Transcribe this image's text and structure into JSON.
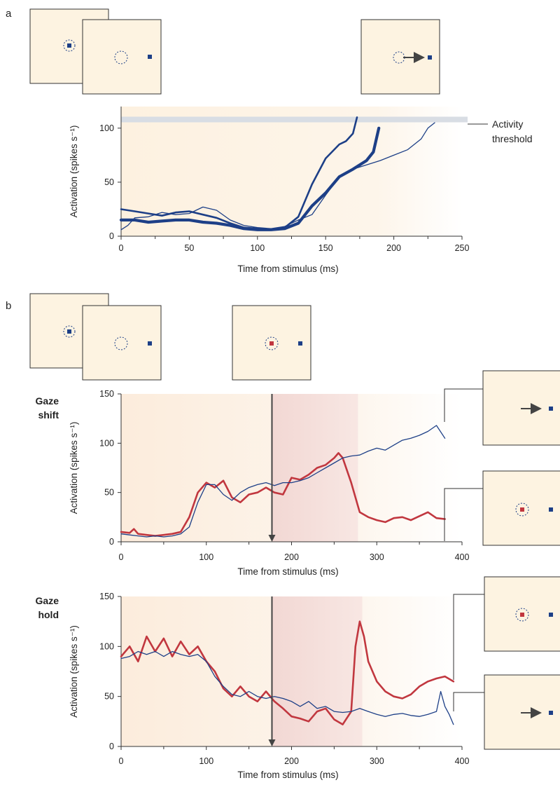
{
  "figure": {
    "panel_a": "a",
    "panel_b": "b",
    "threshold_line1": "Activity",
    "threshold_line2": "threshold",
    "gaze_shift_line1": "Gaze",
    "gaze_shift_line2": "shift",
    "gaze_hold_line1": "Gaze",
    "gaze_hold_line2": "hold"
  },
  "colors": {
    "blue": "#1d3f87",
    "red": "#c1373f",
    "panel_bg": "#fdf3e1",
    "threshold": "#d8dde4",
    "shade": "#f1d9d6"
  },
  "chart_data": [
    {
      "type": "line",
      "panel": "a",
      "xlabel": "Time from stimulus (ms)",
      "ylabel": "Activation (spikes s⁻¹)",
      "xlim": [
        0,
        250
      ],
      "ylim": [
        0,
        120
      ],
      "xticks": [
        "0",
        "50",
        "100",
        "150",
        "200",
        "250"
      ],
      "yticks": [
        "0",
        "50",
        "100"
      ],
      "threshold": 108,
      "threshold_label": "Activity threshold",
      "series": [
        {
          "style": "medium",
          "x": [
            0,
            10,
            20,
            30,
            40,
            50,
            60,
            70,
            80,
            90,
            100,
            110,
            120,
            130,
            140,
            150,
            160,
            165,
            170,
            173
          ],
          "y": [
            25,
            23,
            21,
            19,
            22,
            23,
            20,
            17,
            12,
            8,
            7,
            6,
            8,
            18,
            48,
            72,
            85,
            88,
            95,
            110
          ]
        },
        {
          "style": "thick",
          "x": [
            0,
            10,
            20,
            30,
            40,
            50,
            60,
            70,
            80,
            90,
            100,
            110,
            120,
            130,
            140,
            150,
            160,
            170,
            180,
            185,
            189
          ],
          "y": [
            15,
            15,
            13,
            14,
            15,
            15,
            13,
            12,
            10,
            7,
            6,
            6,
            7,
            12,
            28,
            40,
            55,
            62,
            70,
            78,
            100
          ]
        },
        {
          "style": "thin",
          "x": [
            0,
            5,
            10,
            20,
            30,
            40,
            50,
            60,
            70,
            80,
            90,
            100,
            110,
            120,
            130,
            140,
            150,
            160,
            170,
            180,
            190,
            200,
            210,
            220,
            225,
            230
          ],
          "y": [
            6,
            10,
            17,
            18,
            22,
            20,
            21,
            27,
            24,
            15,
            10,
            8,
            7,
            9,
            15,
            20,
            38,
            55,
            62,
            66,
            70,
            75,
            80,
            90,
            100,
            105
          ]
        }
      ]
    },
    {
      "type": "line",
      "panel": "b-gaze-shift",
      "xlabel": "Time from stimulus (ms)",
      "ylabel": "Activation (spikes s⁻¹)",
      "xlim": [
        0,
        400
      ],
      "ylim": [
        0,
        150
      ],
      "xticks": [
        "0",
        "100",
        "200",
        "300",
        "400"
      ],
      "yticks": [
        "0",
        "50",
        "100",
        "150"
      ],
      "marker_time": 177,
      "shade_range": [
        177,
        278
      ],
      "series": [
        {
          "color": "red",
          "x": [
            0,
            10,
            15,
            20,
            30,
            40,
            50,
            60,
            70,
            80,
            90,
            100,
            110,
            120,
            130,
            140,
            150,
            160,
            170,
            180,
            190,
            200,
            210,
            220,
            230,
            240,
            250,
            255,
            260,
            270,
            280,
            290,
            300,
            310,
            320,
            330,
            340,
            350,
            360,
            370,
            380
          ],
          "y": [
            10,
            9,
            13,
            8,
            7,
            6,
            7,
            8,
            10,
            25,
            50,
            60,
            55,
            62,
            45,
            40,
            48,
            50,
            55,
            50,
            48,
            65,
            63,
            68,
            75,
            78,
            85,
            90,
            85,
            60,
            30,
            25,
            22,
            20,
            24,
            25,
            22,
            26,
            30,
            24,
            23
          ]
        },
        {
          "color": "blue",
          "x": [
            0,
            10,
            20,
            30,
            40,
            50,
            60,
            70,
            80,
            90,
            100,
            110,
            120,
            130,
            140,
            150,
            160,
            170,
            180,
            190,
            200,
            210,
            220,
            230,
            240,
            250,
            260,
            270,
            280,
            290,
            300,
            310,
            320,
            330,
            340,
            350,
            360,
            370,
            380
          ],
          "y": [
            8,
            7,
            6,
            5,
            6,
            5,
            6,
            8,
            15,
            40,
            58,
            58,
            48,
            42,
            50,
            55,
            58,
            60,
            57,
            60,
            60,
            62,
            65,
            70,
            75,
            80,
            85,
            87,
            88,
            92,
            95,
            93,
            98,
            103,
            105,
            108,
            112,
            118,
            105
          ]
        }
      ]
    },
    {
      "type": "line",
      "panel": "b-gaze-hold",
      "xlabel": "Time from stimulus (ms)",
      "ylabel": "Activation (spikes s⁻¹)",
      "xlim": [
        0,
        400
      ],
      "ylim": [
        0,
        150
      ],
      "xticks": [
        "0",
        "100",
        "200",
        "300",
        "400"
      ],
      "yticks": [
        "0",
        "50",
        "100",
        "150"
      ],
      "marker_time": 177,
      "shade_range": [
        177,
        283
      ],
      "series": [
        {
          "color": "red",
          "x": [
            0,
            10,
            20,
            30,
            40,
            50,
            60,
            70,
            80,
            90,
            100,
            110,
            120,
            130,
            140,
            150,
            160,
            170,
            180,
            190,
            200,
            210,
            220,
            230,
            240,
            250,
            260,
            270,
            275,
            280,
            285,
            290,
            300,
            310,
            320,
            330,
            340,
            350,
            360,
            370,
            380,
            390
          ],
          "y": [
            90,
            100,
            85,
            110,
            95,
            108,
            90,
            105,
            92,
            100,
            85,
            75,
            58,
            50,
            60,
            50,
            45,
            55,
            45,
            38,
            30,
            28,
            25,
            35,
            38,
            27,
            22,
            35,
            100,
            125,
            110,
            85,
            65,
            55,
            50,
            48,
            52,
            60,
            65,
            68,
            70,
            65
          ]
        },
        {
          "color": "blue",
          "x": [
            0,
            10,
            20,
            30,
            40,
            50,
            60,
            70,
            80,
            90,
            100,
            110,
            120,
            130,
            140,
            150,
            160,
            170,
            180,
            190,
            200,
            210,
            220,
            230,
            240,
            250,
            260,
            270,
            280,
            290,
            300,
            310,
            320,
            330,
            340,
            350,
            360,
            370,
            375,
            380,
            385,
            390
          ],
          "y": [
            88,
            90,
            95,
            92,
            95,
            90,
            95,
            92,
            90,
            92,
            85,
            70,
            60,
            52,
            50,
            55,
            50,
            48,
            50,
            48,
            45,
            40,
            45,
            38,
            40,
            35,
            34,
            35,
            38,
            35,
            32,
            30,
            32,
            33,
            31,
            30,
            32,
            35,
            55,
            40,
            32,
            22
          ]
        }
      ]
    }
  ]
}
